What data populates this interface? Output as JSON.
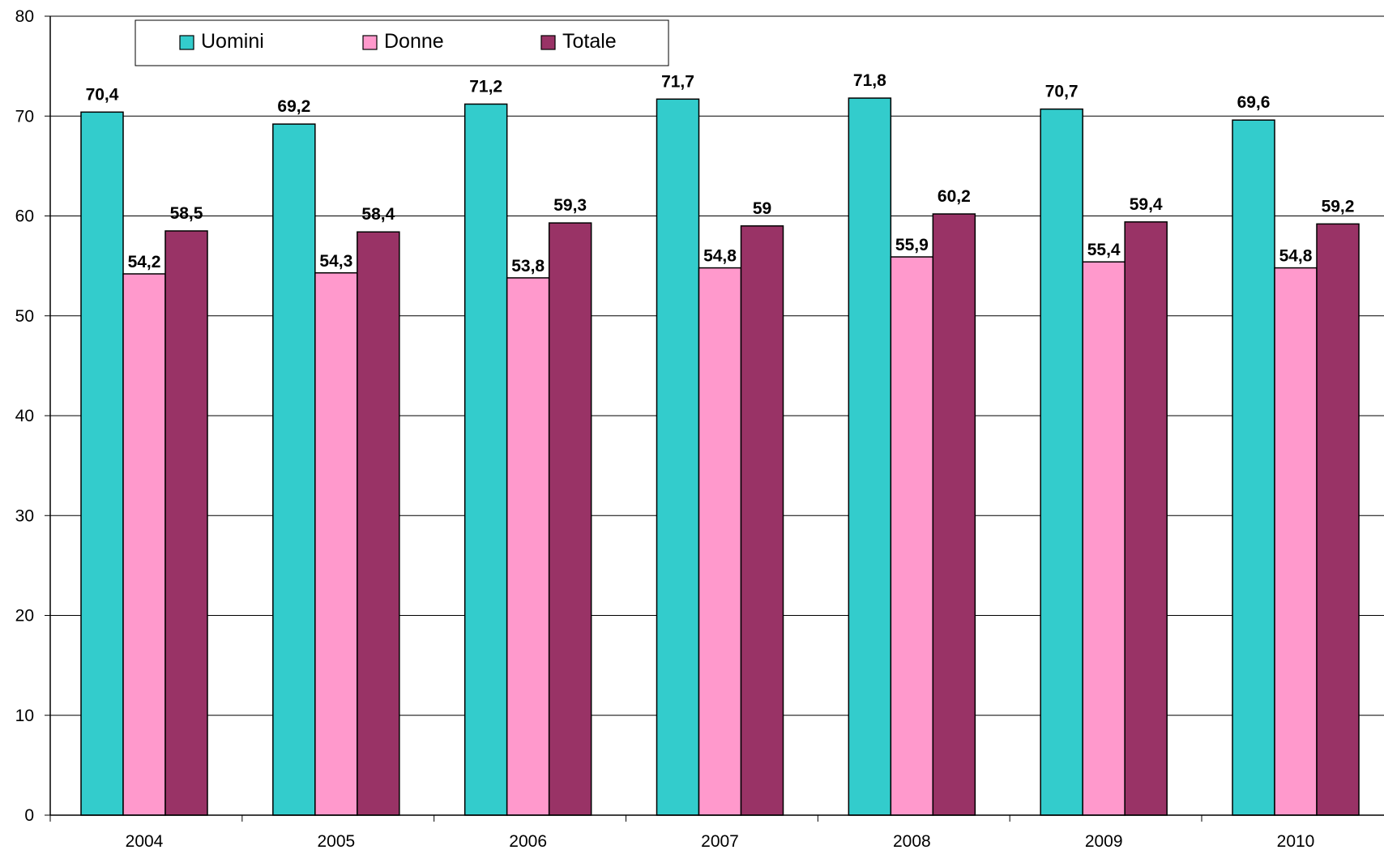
{
  "chart_data": {
    "type": "bar",
    "categories": [
      "2004",
      "2005",
      "2006",
      "2007",
      "2008",
      "2009",
      "2010"
    ],
    "series": [
      {
        "name": "Uomini",
        "color": "#33CCCC",
        "values": [
          70.4,
          69.2,
          71.2,
          71.7,
          71.8,
          70.7,
          69.6
        ]
      },
      {
        "name": "Donne",
        "color": "#FF99CC",
        "values": [
          54.2,
          54.3,
          53.8,
          54.8,
          55.9,
          55.4,
          54.8
        ]
      },
      {
        "name": "Totale",
        "color": "#993366",
        "values": [
          58.5,
          58.4,
          59.3,
          59,
          60.2,
          59.4,
          59.2
        ]
      }
    ],
    "data_labels": [
      [
        "70,4",
        "69,2",
        "71,2",
        "71,7",
        "71,8",
        "70,7",
        "69,6"
      ],
      [
        "54,2",
        "54,3",
        "53,8",
        "54,8",
        "55,9",
        "55,4",
        "54,8"
      ],
      [
        "58,5",
        "58,4",
        "59,3",
        "59",
        "60,2",
        "59,4",
        "59,2"
      ]
    ],
    "ylim": [
      0,
      80
    ],
    "yticks": [
      "0",
      "10",
      "20",
      "30",
      "40",
      "50",
      "60",
      "70",
      "80"
    ],
    "grid": true,
    "legend_position": "top"
  }
}
